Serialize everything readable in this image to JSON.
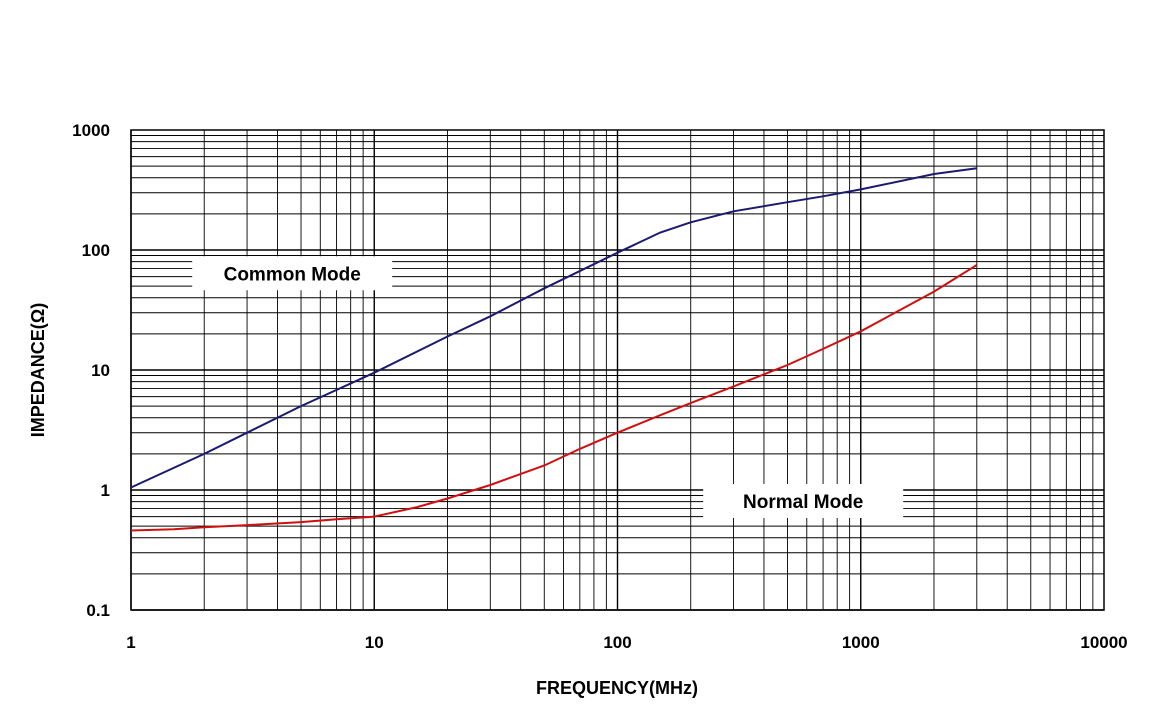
{
  "chart_data": {
    "type": "line",
    "x_scale": "log",
    "y_scale": "log",
    "xlim": [
      1,
      10000
    ],
    "ylim": [
      0.1,
      1000
    ],
    "grid": true,
    "xlabel": "FREQUENCY(MHz)",
    "ylabel": "IMPEDANCE(Ω)",
    "x_ticks": [
      "1",
      "10",
      "100",
      "1000",
      "10000"
    ],
    "y_ticks": [
      "1000",
      "100",
      "10",
      "1",
      "0.1"
    ],
    "series": [
      {
        "name": "Common Mode",
        "color": "#1a1a6e",
        "x": [
          1,
          2,
          3,
          5,
          10,
          20,
          30,
          50,
          100,
          150,
          200,
          300,
          500,
          700,
          1000,
          2000,
          3000
        ],
        "y": [
          1.05,
          2.0,
          3.0,
          5.0,
          9.5,
          19,
          28,
          48,
          95,
          140,
          170,
          210,
          250,
          280,
          320,
          430,
          480
        ]
      },
      {
        "name": "Normal Mode",
        "color": "#d01010",
        "x": [
          1,
          1.5,
          2,
          3,
          5,
          7,
          10,
          15,
          20,
          30,
          50,
          70,
          100,
          150,
          200,
          300,
          500,
          700,
          1000,
          2000,
          3000
        ],
        "y": [
          0.46,
          0.47,
          0.49,
          0.51,
          0.54,
          0.57,
          0.6,
          0.72,
          0.85,
          1.1,
          1.6,
          2.2,
          3.0,
          4.2,
          5.3,
          7.3,
          11,
          15,
          21,
          45,
          75
        ]
      }
    ]
  }
}
